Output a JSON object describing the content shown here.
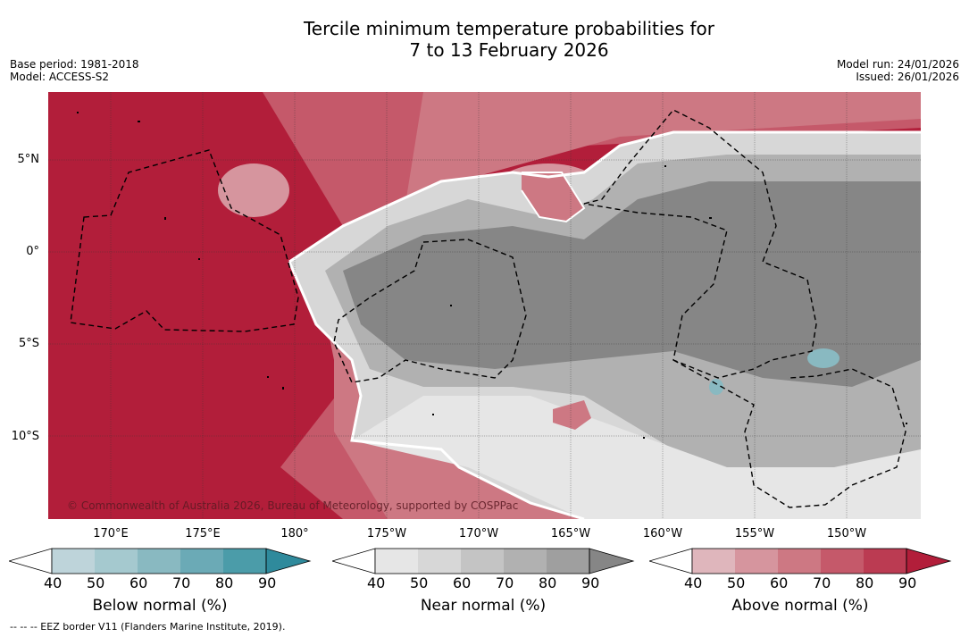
{
  "title": {
    "line1": "Tercile minimum temperature probabilities for",
    "line2": "7 to 13 February 2026"
  },
  "meta_left": {
    "base_period": "Base period: 1981-2018",
    "model": "Model: ACCESS-S2"
  },
  "meta_right": {
    "model_run": "Model run: 24/01/2026",
    "issued": "Issued: 26/01/2026"
  },
  "axes": {
    "lat_labels": [
      "5°N",
      "0°",
      "5°S",
      "10°S"
    ],
    "lon_labels": [
      "170°E",
      "175°E",
      "180°",
      "175°W",
      "170°W",
      "165°W",
      "160°W",
      "155°W",
      "150°W"
    ]
  },
  "credit": "© Commonwealth of Australia 2026, Bureau of Meteorology, supported by COSPPac",
  "colorbars": [
    {
      "title": "Below normal (%)",
      "ticks": [
        "40",
        "50",
        "60",
        "70",
        "80",
        "90"
      ],
      "colors": [
        "#bed4da",
        "#a5c9cf",
        "#89b9c1",
        "#6baab6",
        "#4b9ca9",
        "#2f8a9c"
      ]
    },
    {
      "title": "Near normal (%)",
      "ticks": [
        "40",
        "50",
        "60",
        "70",
        "80",
        "90"
      ],
      "colors": [
        "#e6e6e6",
        "#d7d7d7",
        "#c4c4c4",
        "#b1b1b1",
        "#9f9f9f",
        "#868686"
      ]
    },
    {
      "title": "Above normal (%)",
      "ticks": [
        "40",
        "50",
        "60",
        "70",
        "80",
        "90"
      ],
      "colors": [
        "#dfb6bc",
        "#d6959e",
        "#cd7883",
        "#c5596a",
        "#bb3b52",
        "#b21e3a"
      ]
    }
  ],
  "eez_legend": "--  --  -- EEZ border V11 (Flanders Marine Institute, 2019)."
}
